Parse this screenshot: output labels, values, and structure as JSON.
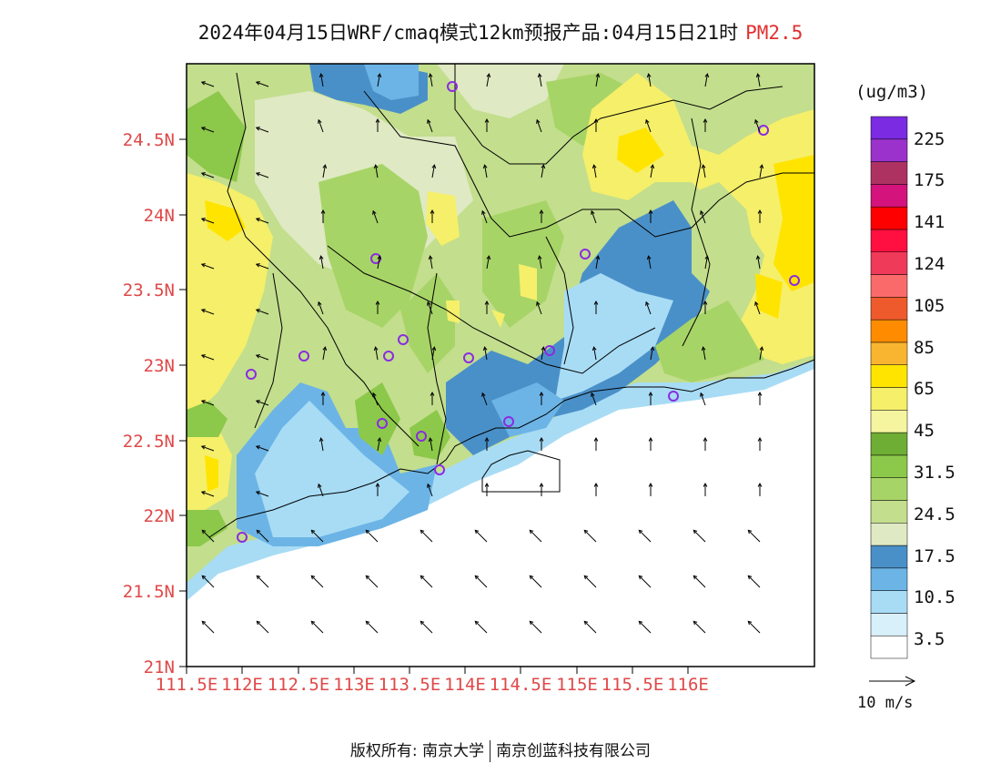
{
  "header": {
    "title": "2024年04月15日WRF/cmaq模式12km预报产品:04月15日21时",
    "variable": "PM2.5"
  },
  "map": {
    "x_ticks": [
      "111.5E",
      "112E",
      "112.5E",
      "113E",
      "113.5E",
      "114E",
      "114.5E",
      "115E",
      "115.5E",
      "116E"
    ],
    "y_ticks": [
      "24.5N",
      "24N",
      "23.5N",
      "23N",
      "22.5N",
      "22N",
      "21.5N",
      "21N"
    ]
  },
  "colorbar": {
    "units": "(ug/m3)",
    "colors": [
      "#ffffff",
      "#d8f0fa",
      "#a8dcf5",
      "#6cb4e6",
      "#4a90c8",
      "#dfe9c3",
      "#c3de8d",
      "#a7d467",
      "#8cc84a",
      "#6fae34",
      "#f5f5a0",
      "#f5ef6a",
      "#ffe400",
      "#f9b530",
      "#ff8c00",
      "#ef5a2c",
      "#fb6a6a",
      "#ef3a5a",
      "#ff1040",
      "#ff0000",
      "#d4147c",
      "#ad3262",
      "#9b32cc",
      "#7b2be2"
    ],
    "labels": [
      "3.5",
      "10.5",
      "17.5",
      "24.5",
      "31.5",
      "45",
      "65",
      "85",
      "105",
      "124",
      "141",
      "175",
      "225"
    ]
  },
  "legend": {
    "vector_ref": "10 m/s"
  },
  "footer": {
    "copyright": "版权所有: 南京大学",
    "company": "南京创蓝科技有限公司"
  }
}
